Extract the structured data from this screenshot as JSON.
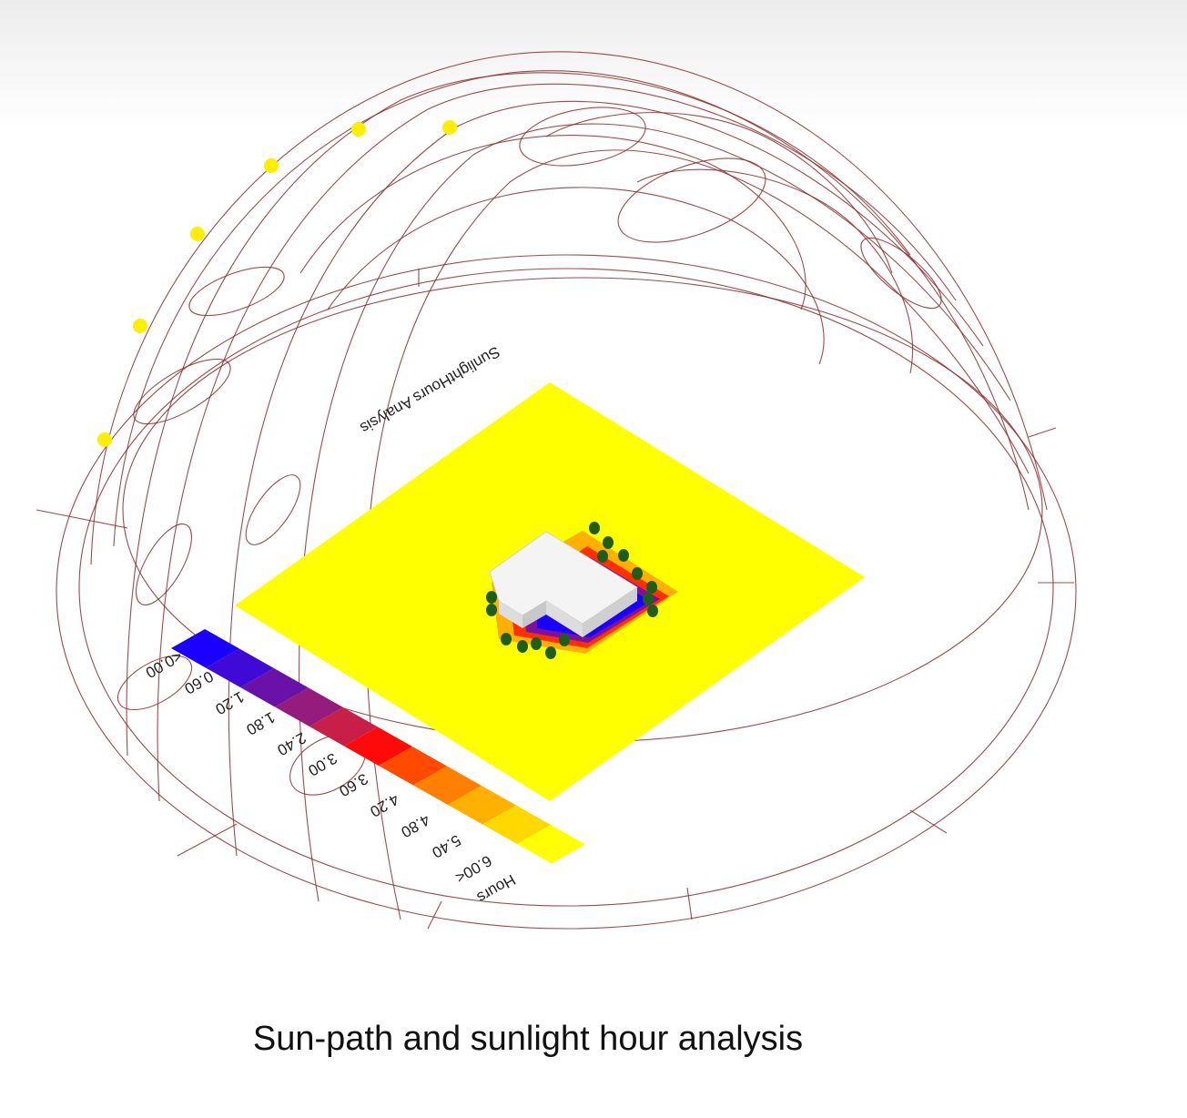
{
  "caption": "Sun-path and sunlight hour analysis",
  "plot_title": "SunlightHours Analysis",
  "legend": {
    "title": "Hours",
    "labels": [
      "<0.00",
      "0.60",
      "1.20",
      "1.80",
      "2.40",
      "3.00",
      "3.60",
      "4.20",
      "4.80",
      "5.40",
      "6.00<"
    ],
    "colors": [
      "#1a00ff",
      "#3f0ad6",
      "#6a12a8",
      "#951c7c",
      "#c81f48",
      "#ff0a0a",
      "#ff4a00",
      "#ff8000",
      "#ffb000",
      "#ffd800",
      "#ffff00"
    ]
  },
  "colors": {
    "sun_path_lines": "#8b2e2e",
    "sun_positions": "#ffee00",
    "ground_plane": "#ffff00",
    "building": "#f2f2f2",
    "trees": "#1f5e1a",
    "shadow_core": "#1a00ff"
  }
}
